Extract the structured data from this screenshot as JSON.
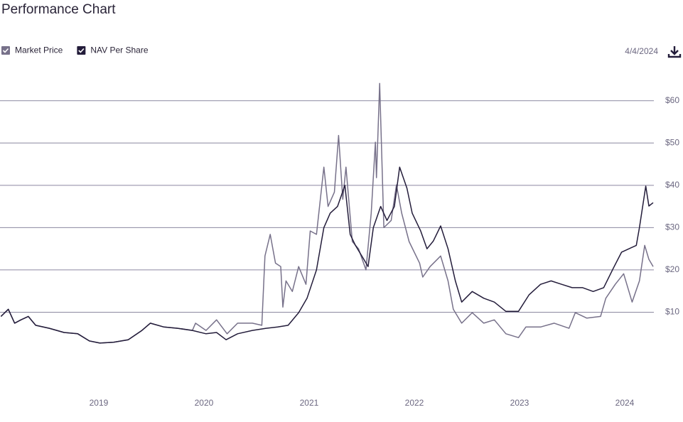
{
  "chart_data": {
    "type": "line",
    "title": "Performance Chart",
    "date": "4/4/2024",
    "xlim": [
      2018.061,
      2024.277
    ],
    "xticks": [
      2019,
      2020,
      2021,
      2022,
      2023,
      2024
    ],
    "ylim": [
      0,
      65
    ],
    "yticks": [
      {
        "value": 10,
        "label": "$10"
      },
      {
        "value": 20,
        "label": "$20"
      },
      {
        "value": 30,
        "label": "$30"
      },
      {
        "value": 40,
        "label": "$40"
      },
      {
        "value": 50,
        "label": "$50"
      },
      {
        "value": 60,
        "label": "$60"
      }
    ],
    "grid": true,
    "legend": "top-left",
    "series": [
      {
        "name": "Market Price",
        "color": "#77718a",
        "x": [
          2018.07,
          2018.14,
          2018.2,
          2018.26,
          2018.33,
          2018.4,
          2018.53,
          2018.67,
          2018.8,
          2018.91,
          2019.01,
          2019.14,
          2019.28,
          2019.41,
          2019.49,
          2019.62,
          2019.75,
          2019.89,
          2019.92,
          2020.02,
          2020.12,
          2020.22,
          2020.32,
          2020.46,
          2020.55,
          2020.58,
          2020.63,
          2020.68,
          2020.73,
          2020.75,
          2020.78,
          2020.84,
          2020.9,
          2020.97,
          2021.01,
          2021.07,
          2021.14,
          2021.18,
          2021.24,
          2021.28,
          2021.32,
          2021.35,
          2021.41,
          2021.47,
          2021.54,
          2021.59,
          2021.63,
          2021.64,
          2021.67,
          2021.71,
          2021.78,
          2021.83,
          2021.88,
          2021.95,
          2022.05,
          2022.08,
          2022.15,
          2022.25,
          2022.32,
          2022.37,
          2022.45,
          2022.55,
          2022.66,
          2022.76,
          2022.87,
          2022.99,
          2023.06,
          2023.2,
          2023.33,
          2023.47,
          2023.53,
          2023.64,
          2023.77,
          2023.82,
          2023.91,
          2023.99,
          2024.07,
          2024.14,
          2024.19,
          2024.23,
          2024.27
        ],
        "values": [
          9,
          10.7,
          7.4,
          8.2,
          9,
          6.9,
          6.2,
          5.2,
          4.9,
          3.2,
          2.7,
          2.9,
          3.5,
          5.7,
          7.4,
          6.5,
          6.2,
          5.7,
          7.4,
          5.7,
          8.2,
          4.9,
          7.4,
          7.4,
          6.9,
          23.3,
          28.4,
          21.6,
          20.8,
          11.2,
          17.4,
          14.9,
          20.8,
          16.6,
          29.2,
          28.4,
          44.3,
          35,
          38.4,
          51.8,
          36.7,
          44.3,
          26.7,
          25,
          20,
          33.4,
          50.2,
          41.8,
          64.1,
          30,
          31.7,
          40.1,
          33.4,
          26.7,
          21.6,
          18.3,
          20.8,
          23.3,
          17.4,
          10.7,
          7.4,
          9.9,
          7.4,
          8.2,
          4.9,
          4,
          6.5,
          6.5,
          7.4,
          6.2,
          9.9,
          8.6,
          9,
          13.3,
          16.6,
          19.1,
          12.4,
          17.4,
          25.8,
          22.5,
          20.8
        ]
      },
      {
        "name": "NAV Per Share",
        "color": "#231c3a",
        "x": [
          2018.07,
          2018.14,
          2018.2,
          2018.26,
          2018.33,
          2018.4,
          2018.53,
          2018.67,
          2018.8,
          2018.91,
          2019.01,
          2019.14,
          2019.28,
          2019.41,
          2019.49,
          2019.62,
          2019.75,
          2019.89,
          2020.02,
          2020.12,
          2020.21,
          2020.32,
          2020.46,
          2020.59,
          2020.7,
          2020.8,
          2020.9,
          2020.98,
          2021.07,
          2021.14,
          2021.2,
          2021.27,
          2021.34,
          2021.39,
          2021.44,
          2021.52,
          2021.56,
          2021.61,
          2021.68,
          2021.74,
          2021.81,
          2021.86,
          2021.93,
          2021.98,
          2022.06,
          2022.12,
          2022.18,
          2022.25,
          2022.32,
          2022.39,
          2022.45,
          2022.55,
          2022.66,
          2022.76,
          2022.87,
          2022.99,
          2023.09,
          2023.2,
          2023.3,
          2023.4,
          2023.5,
          2023.6,
          2023.7,
          2023.8,
          2023.89,
          2023.97,
          2024.04,
          2024.11,
          2024.14,
          2024.2,
          2024.23,
          2024.27
        ],
        "values": [
          9,
          10.7,
          7.4,
          8.2,
          9,
          6.9,
          6.2,
          5.2,
          4.9,
          3.2,
          2.7,
          2.9,
          3.5,
          5.7,
          7.4,
          6.5,
          6.2,
          5.7,
          4.9,
          5.2,
          3.5,
          4.9,
          5.7,
          6.2,
          6.5,
          6.9,
          9.9,
          13.3,
          20,
          30,
          33.4,
          35,
          40,
          28.4,
          25.8,
          22.5,
          20.8,
          30,
          35,
          31.7,
          35,
          44.3,
          39.3,
          33.4,
          29.2,
          25,
          26.8,
          30.4,
          25,
          17.4,
          12.4,
          14.9,
          13.3,
          12.4,
          10.2,
          10.2,
          14.1,
          16.6,
          17.4,
          16.6,
          15.8,
          15.8,
          14.9,
          15.8,
          20.3,
          24.2,
          25,
          25.8,
          30,
          39.8,
          35.1,
          35.9
        ]
      }
    ]
  }
}
